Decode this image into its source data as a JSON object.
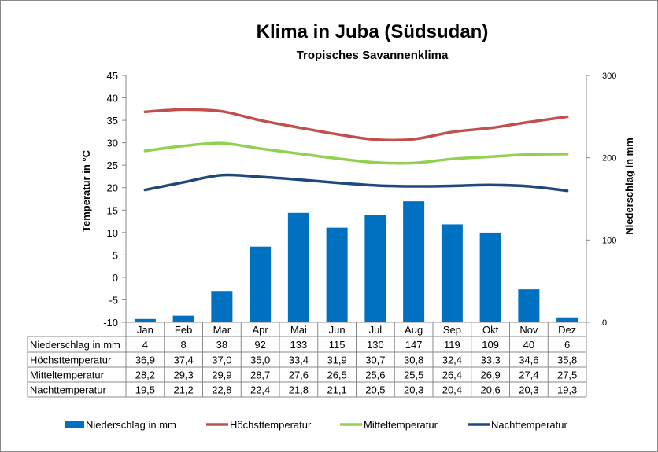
{
  "chart_data": {
    "type": "bar+line",
    "title": "Klima in Juba (Südsudan)",
    "subtitle": "Tropisches Savannenklima",
    "ylabel_left": "Temperatur in °C",
    "ylabel_right": "Niederschlag in mm",
    "ylim_left": [
      -10,
      45
    ],
    "yticks_left": [
      45,
      40,
      35,
      30,
      25,
      20,
      15,
      10,
      5,
      0,
      -5,
      -10
    ],
    "ylim_right": [
      0,
      300
    ],
    "yticks_right": [
      300,
      200,
      100,
      0
    ],
    "categories": [
      "Jan",
      "Feb",
      "Mar",
      "Apr",
      "Mai",
      "Jun",
      "Jul",
      "Aug",
      "Sep",
      "Okt",
      "Nov",
      "Dez"
    ],
    "series": [
      {
        "name": "Niederschlag in mm",
        "type": "bar",
        "axis": "right",
        "color": "#0070C0",
        "values": [
          4,
          8,
          38,
          92,
          133,
          115,
          130,
          147,
          119,
          109,
          40,
          6
        ],
        "labels": [
          "4",
          "8",
          "38",
          "92",
          "133",
          "115",
          "130",
          "147",
          "119",
          "109",
          "40",
          "6"
        ]
      },
      {
        "name": "Höchsttemperatur",
        "type": "line",
        "axis": "left",
        "color": "#C0504D",
        "values": [
          36.9,
          37.4,
          37.0,
          35.0,
          33.4,
          31.9,
          30.7,
          30.8,
          32.4,
          33.3,
          34.6,
          35.8
        ],
        "labels": [
          "36,9",
          "37,4",
          "37,0",
          "35,0",
          "33,4",
          "31,9",
          "30,7",
          "30,8",
          "32,4",
          "33,3",
          "34,6",
          "35,8"
        ]
      },
      {
        "name": "Mitteltemperatur",
        "type": "line",
        "axis": "left",
        "color": "#92D050",
        "values": [
          28.2,
          29.3,
          29.9,
          28.7,
          27.6,
          26.5,
          25.6,
          25.5,
          26.4,
          26.9,
          27.4,
          27.5
        ],
        "labels": [
          "28,2",
          "29,3",
          "29,9",
          "28,7",
          "27,6",
          "26,5",
          "25,6",
          "25,5",
          "26,4",
          "26,9",
          "27,4",
          "27,5"
        ]
      },
      {
        "name": "Nachttemperatur",
        "type": "line",
        "axis": "left",
        "color": "#1F497D",
        "values": [
          19.5,
          21.2,
          22.8,
          22.4,
          21.8,
          21.1,
          20.5,
          20.3,
          20.4,
          20.6,
          20.3,
          19.3
        ],
        "labels": [
          "19,5",
          "21,2",
          "22,8",
          "22,4",
          "21,8",
          "21,1",
          "20,5",
          "20,3",
          "20,4",
          "20,6",
          "20,3",
          "19,3"
        ]
      }
    ],
    "legend_position": "bottom",
    "grid": false
  }
}
